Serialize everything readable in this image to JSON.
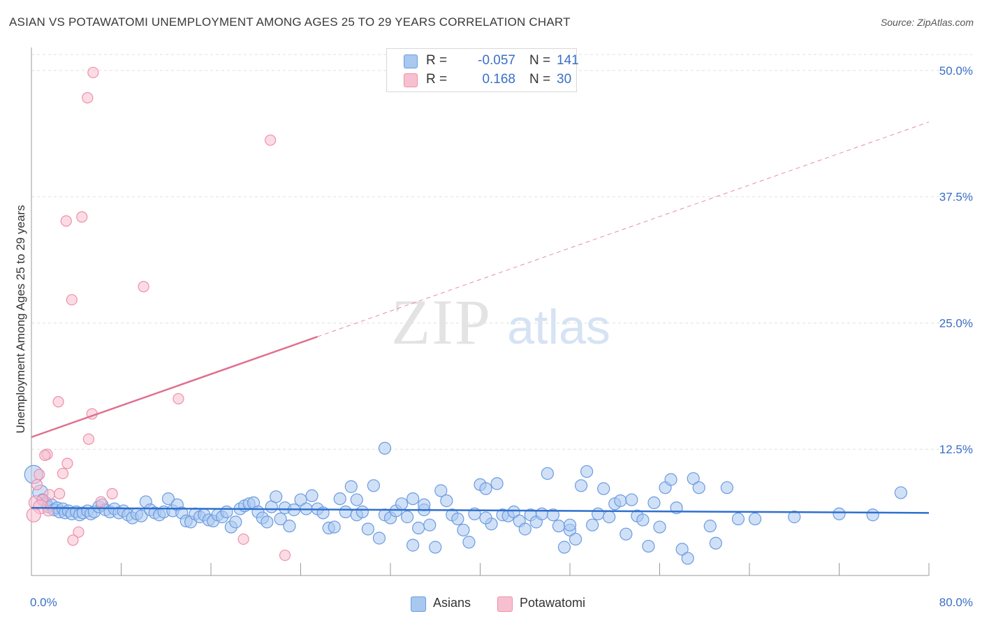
{
  "title": "ASIAN VS POTAWATOMI UNEMPLOYMENT AMONG AGES 25 TO 29 YEARS CORRELATION CHART",
  "source": "Source: ZipAtlas.com",
  "watermark": {
    "zip": "ZIP",
    "atlas": "atlas"
  },
  "legend": {
    "asians": {
      "r_label": "R =",
      "r_value": "-0.057",
      "n_label": "N =",
      "n_value": "141"
    },
    "potawatomi": {
      "r_label": "R =",
      "r_value": "0.168",
      "n_label": "N =",
      "n_value": "30"
    }
  },
  "bottom_legend": {
    "asians": "Asians",
    "potawatomi": "Potawatomi"
  },
  "colors": {
    "asian_fill": "#a9c8f0",
    "asian_stroke": "#6b9be0",
    "asian_line": "#2f6fcf",
    "pota_fill": "#f7c0d0",
    "pota_stroke": "#ee8fab",
    "pota_line": "#e0708f",
    "axis_text": "#3a6fc4",
    "grid": "#e0e0e0"
  },
  "chart_data": {
    "type": "scatter",
    "title": "ASIAN VS POTAWATOMI UNEMPLOYMENT AMONG AGES 25 TO 29 YEARS CORRELATION CHART",
    "xlabel": "",
    "ylabel": "Unemployment Among Ages 25 to 29 years",
    "xlim": [
      0,
      80
    ],
    "ylim": [
      0,
      52
    ],
    "x_tick_labels": [
      "0.0%",
      "80.0%"
    ],
    "y_ticks": [
      12.5,
      25.0,
      37.5,
      50.0
    ],
    "y_tick_labels": [
      "12.5%",
      "25.0%",
      "37.5%",
      "50.0%"
    ],
    "series": [
      {
        "name": "Asians",
        "r": -0.057,
        "n": 141,
        "trend": {
          "x": [
            0,
            80
          ],
          "y": [
            6.7,
            6.2
          ],
          "style": "solid"
        },
        "points": [
          [
            0.2,
            10.0
          ],
          [
            0.8,
            8.2
          ],
          [
            1.0,
            7.5
          ],
          [
            1.3,
            7.2
          ],
          [
            1.5,
            6.8
          ],
          [
            1.8,
            7.0
          ],
          [
            2.0,
            6.5
          ],
          [
            2.3,
            6.7
          ],
          [
            2.5,
            6.3
          ],
          [
            2.8,
            6.6
          ],
          [
            3.0,
            6.2
          ],
          [
            3.3,
            6.4
          ],
          [
            3.6,
            6.1
          ],
          [
            4.0,
            6.3
          ],
          [
            4.3,
            6.0
          ],
          [
            4.6,
            6.2
          ],
          [
            5.0,
            6.4
          ],
          [
            5.3,
            6.1
          ],
          [
            5.6,
            6.3
          ],
          [
            6.0,
            6.8
          ],
          [
            6.3,
            7.0
          ],
          [
            6.6,
            6.5
          ],
          [
            7.0,
            6.3
          ],
          [
            7.4,
            6.6
          ],
          [
            7.8,
            6.2
          ],
          [
            8.2,
            6.4
          ],
          [
            8.6,
            6.0
          ],
          [
            9.0,
            5.7
          ],
          [
            9.4,
            6.1
          ],
          [
            9.8,
            5.9
          ],
          [
            10.2,
            7.3
          ],
          [
            10.6,
            6.5
          ],
          [
            11.0,
            6.2
          ],
          [
            11.4,
            6.0
          ],
          [
            11.8,
            6.3
          ],
          [
            12.2,
            7.6
          ],
          [
            12.6,
            6.4
          ],
          [
            13.0,
            7.0
          ],
          [
            13.4,
            6.2
          ],
          [
            13.8,
            5.4
          ],
          [
            14.2,
            5.3
          ],
          [
            14.6,
            6.1
          ],
          [
            15.0,
            5.8
          ],
          [
            15.4,
            6.0
          ],
          [
            15.8,
            5.5
          ],
          [
            16.2,
            5.4
          ],
          [
            16.6,
            6.0
          ],
          [
            17.0,
            5.8
          ],
          [
            17.4,
            6.3
          ],
          [
            17.8,
            4.8
          ],
          [
            18.2,
            5.3
          ],
          [
            18.6,
            6.6
          ],
          [
            19.0,
            6.9
          ],
          [
            19.4,
            7.1
          ],
          [
            19.8,
            7.2
          ],
          [
            20.2,
            6.3
          ],
          [
            20.6,
            5.7
          ],
          [
            21.0,
            5.3
          ],
          [
            21.4,
            6.8
          ],
          [
            21.8,
            7.8
          ],
          [
            22.2,
            5.6
          ],
          [
            22.6,
            6.7
          ],
          [
            23.0,
            4.9
          ],
          [
            23.4,
            6.5
          ],
          [
            24.0,
            7.5
          ],
          [
            24.5,
            6.6
          ],
          [
            25.0,
            7.9
          ],
          [
            25.5,
            6.6
          ],
          [
            26.0,
            6.2
          ],
          [
            26.5,
            4.7
          ],
          [
            27.0,
            4.8
          ],
          [
            27.5,
            7.6
          ],
          [
            28.0,
            6.3
          ],
          [
            28.5,
            8.8
          ],
          [
            29.0,
            6.0
          ],
          [
            29.5,
            6.3
          ],
          [
            30.0,
            4.6
          ],
          [
            30.5,
            8.9
          ],
          [
            31.0,
            3.7
          ],
          [
            31.5,
            6.0
          ],
          [
            32.0,
            5.7
          ],
          [
            32.5,
            6.4
          ],
          [
            33.0,
            7.1
          ],
          [
            33.5,
            5.8
          ],
          [
            34.0,
            7.6
          ],
          [
            34.5,
            4.7
          ],
          [
            35.0,
            6.5
          ],
          [
            35.5,
            5.0
          ],
          [
            36.0,
            2.8
          ],
          [
            36.5,
            8.4
          ],
          [
            37.0,
            7.4
          ],
          [
            37.5,
            6.0
          ],
          [
            38.0,
            5.6
          ],
          [
            38.5,
            4.5
          ],
          [
            39.0,
            3.3
          ],
          [
            39.5,
            6.1
          ],
          [
            40.0,
            9.0
          ],
          [
            40.5,
            8.6
          ],
          [
            41.0,
            5.1
          ],
          [
            41.5,
            9.1
          ],
          [
            42.0,
            6.0
          ],
          [
            42.5,
            5.9
          ],
          [
            43.0,
            6.3
          ],
          [
            43.5,
            5.4
          ],
          [
            44.0,
            4.6
          ],
          [
            44.5,
            6.0
          ],
          [
            45.0,
            5.3
          ],
          [
            45.5,
            6.1
          ],
          [
            46.0,
            10.1
          ],
          [
            46.5,
            6.0
          ],
          [
            47.0,
            4.9
          ],
          [
            47.5,
            2.8
          ],
          [
            48.0,
            4.5
          ],
          [
            48.5,
            3.6
          ],
          [
            49.0,
            8.9
          ],
          [
            49.5,
            10.3
          ],
          [
            50.0,
            5.0
          ],
          [
            50.5,
            6.1
          ],
          [
            51.0,
            8.6
          ],
          [
            51.5,
            5.8
          ],
          [
            52.0,
            7.1
          ],
          [
            52.5,
            7.4
          ],
          [
            53.0,
            4.1
          ],
          [
            53.5,
            7.5
          ],
          [
            54.0,
            5.9
          ],
          [
            54.5,
            5.5
          ],
          [
            55.0,
            2.9
          ],
          [
            55.5,
            7.2
          ],
          [
            56.0,
            4.8
          ],
          [
            56.5,
            8.7
          ],
          [
            57.0,
            9.5
          ],
          [
            57.5,
            6.7
          ],
          [
            58.0,
            2.6
          ],
          [
            58.5,
            1.7
          ],
          [
            59.0,
            9.6
          ],
          [
            59.5,
            8.7
          ],
          [
            60.5,
            4.9
          ],
          [
            61.0,
            3.2
          ],
          [
            62.0,
            8.7
          ],
          [
            63.0,
            5.6
          ],
          [
            64.5,
            5.6
          ],
          [
            68.0,
            5.8
          ],
          [
            72.0,
            6.1
          ],
          [
            75.0,
            6.0
          ],
          [
            77.5,
            8.2
          ],
          [
            35.0,
            7.0
          ],
          [
            40.5,
            5.7
          ],
          [
            34.0,
            3.0
          ],
          [
            48.0,
            5.0
          ],
          [
            31.5,
            12.6
          ],
          [
            29.0,
            7.5
          ]
        ]
      },
      {
        "name": "Potawatomi",
        "r": 0.168,
        "n": 30,
        "trend": {
          "x": [
            0,
            80
          ],
          "y": [
            13.7,
            44.9
          ],
          "solid_until_x": 25.5,
          "style": "solid-then-dashed"
        },
        "points": [
          [
            5.5,
            49.8
          ],
          [
            5.0,
            47.3
          ],
          [
            21.3,
            43.1
          ],
          [
            4.5,
            35.5
          ],
          [
            3.1,
            35.1
          ],
          [
            10.0,
            28.6
          ],
          [
            3.6,
            27.3
          ],
          [
            2.4,
            17.2
          ],
          [
            13.1,
            17.5
          ],
          [
            5.4,
            16.0
          ],
          [
            5.1,
            13.5
          ],
          [
            1.4,
            12.0
          ],
          [
            1.2,
            11.9
          ],
          [
            3.2,
            11.1
          ],
          [
            0.5,
            9.0
          ],
          [
            2.8,
            10.1
          ],
          [
            0.7,
            10.0
          ],
          [
            1.6,
            8.0
          ],
          [
            2.5,
            8.1
          ],
          [
            7.2,
            8.1
          ],
          [
            1.0,
            7.5
          ],
          [
            0.4,
            7.2
          ],
          [
            6.2,
            7.3
          ],
          [
            0.8,
            6.8
          ],
          [
            1.5,
            6.4
          ],
          [
            0.2,
            6.0
          ],
          [
            4.2,
            4.3
          ],
          [
            3.7,
            3.5
          ],
          [
            18.9,
            3.6
          ],
          [
            22.6,
            2.0
          ]
        ]
      }
    ]
  }
}
